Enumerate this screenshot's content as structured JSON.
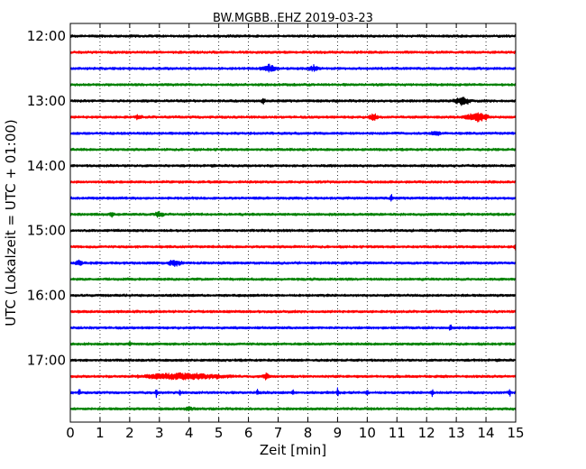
{
  "chart_data": {
    "type": "line",
    "subtype": "helicorder",
    "title": "BW.MGBB..EHZ 2019-03-23",
    "xlabel": "Zeit  [min]",
    "ylabel": "UTC (Lokalzeit = UTC + 01:00)",
    "xlim": [
      0,
      15
    ],
    "x_ticks": [
      "0",
      "1",
      "2",
      "3",
      "4",
      "5",
      "6",
      "7",
      "8",
      "9",
      "10",
      "11",
      "12",
      "13",
      "14",
      "15"
    ],
    "y_ticks": [
      "12:00",
      "13:00",
      "14:00",
      "15:00",
      "16:00",
      "17:00"
    ],
    "y_tick_minutes": [
      0,
      60,
      120,
      180,
      240,
      300
    ],
    "trace_start_minutes": [
      0,
      15,
      30,
      45,
      60,
      75,
      90,
      105,
      120,
      135,
      150,
      165,
      180,
      195,
      210,
      225,
      240,
      255,
      270,
      285,
      300,
      315,
      330,
      345
    ],
    "trace_color_cycle": [
      "#000000",
      "#ff0000",
      "#0000ff",
      "#008000"
    ],
    "x_grid": "dotted",
    "events": [
      {
        "trace": 2,
        "minute": 6.7,
        "amp": 4,
        "width": 0.35
      },
      {
        "trace": 2,
        "minute": 8.2,
        "amp": 3,
        "width": 0.25
      },
      {
        "trace": 4,
        "minute": 13.2,
        "amp": 5,
        "width": 0.35
      },
      {
        "trace": 4,
        "minute": 6.5,
        "amp": 3,
        "width": 0.1
      },
      {
        "trace": 5,
        "minute": 13.7,
        "amp": 6,
        "width": 0.5
      },
      {
        "trace": 5,
        "minute": 10.2,
        "amp": 4,
        "width": 0.2
      },
      {
        "trace": 5,
        "minute": 2.3,
        "amp": 2.5,
        "width": 0.15
      },
      {
        "trace": 6,
        "minute": 12.3,
        "amp": 2.5,
        "width": 0.2
      },
      {
        "trace": 10,
        "minute": 10.8,
        "amp": 5,
        "width": 0.05
      },
      {
        "trace": 11,
        "minute": 1.4,
        "amp": 3,
        "width": 0.1
      },
      {
        "trace": 11,
        "minute": 3.0,
        "amp": 3,
        "width": 0.2
      },
      {
        "trace": 13,
        "minute": 15.0,
        "amp": 4,
        "width": 0.1
      },
      {
        "trace": 14,
        "minute": 3.5,
        "amp": 4,
        "width": 0.3
      },
      {
        "trace": 14,
        "minute": 0.3,
        "amp": 3,
        "width": 0.15
      },
      {
        "trace": 18,
        "minute": 12.8,
        "amp": 5,
        "width": 0.05
      },
      {
        "trace": 19,
        "minute": 2.0,
        "amp": 4,
        "width": 0.05
      },
      {
        "trace": 21,
        "minute": 3.8,
        "amp": 4,
        "width": 1.8
      },
      {
        "trace": 21,
        "minute": 6.6,
        "amp": 3.5,
        "width": 0.15
      },
      {
        "trace": 22,
        "minute": 0.3,
        "amp": 5,
        "width": 0.05
      },
      {
        "trace": 22,
        "minute": 2.9,
        "amp": 6,
        "width": 0.05
      },
      {
        "trace": 22,
        "minute": 3.7,
        "amp": 4,
        "width": 0.05
      },
      {
        "trace": 22,
        "minute": 6.3,
        "amp": 4,
        "width": 0.05
      },
      {
        "trace": 22,
        "minute": 7.5,
        "amp": 5,
        "width": 0.05
      },
      {
        "trace": 22,
        "minute": 9.0,
        "amp": 6,
        "width": 0.05
      },
      {
        "trace": 22,
        "minute": 10.0,
        "amp": 4,
        "width": 0.05
      },
      {
        "trace": 22,
        "minute": 12.2,
        "amp": 7,
        "width": 0.05
      },
      {
        "trace": 22,
        "minute": 14.8,
        "amp": 4,
        "width": 0.05
      },
      {
        "trace": 23,
        "minute": 4.0,
        "amp": 2,
        "width": 0.2
      }
    ]
  }
}
